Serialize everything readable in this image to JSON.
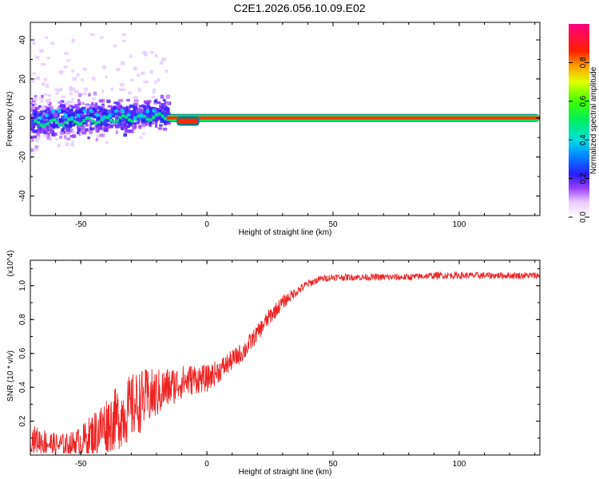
{
  "title": "C2E1.2026.056.10.09.E02",
  "chart_data": [
    {
      "type": "heatmap",
      "panel": "spectrogram",
      "xlabel": "Height of straight line (km)",
      "ylabel": "Frequency (Hz)",
      "xlim": [
        -70,
        132
      ],
      "ylim": [
        -50,
        49
      ],
      "xticks": [
        -50,
        0,
        50,
        100
      ],
      "yticks": [
        -40,
        -20,
        0,
        20,
        40
      ],
      "colorbar_label": "Normalized spectral amplitude",
      "colorbar_ticks": [
        0.0,
        0.2,
        0.4,
        0.6,
        0.8
      ],
      "colorbar_range": [
        0,
        1
      ],
      "dominant_line": {
        "x_start": -16,
        "x_end": 132,
        "frequency_hz": 0,
        "amplitude": 0.9
      },
      "notch": {
        "x_start": -12,
        "x_end": -3,
        "frequency_hz": -1.5
      },
      "noisy_region": {
        "x_start": -70,
        "x_end": -15,
        "frequency_spread_hz": [
          -10,
          45
        ]
      }
    },
    {
      "type": "line",
      "panel": "snr",
      "xlabel": "Height of straight line (km)",
      "ylabel": "SNR (10 * v/v)",
      "yscale_label": "(x10^4)",
      "xlim": [
        -70,
        132
      ],
      "ylim": [
        0,
        1.15
      ],
      "xticks": [
        -50,
        0,
        50,
        100
      ],
      "yticks": [
        0.2,
        0.4,
        0.6,
        0.8,
        1.0
      ],
      "color": "#ee2222",
      "series": [
        {
          "name": "SNR",
          "x": [
            -70,
            -65,
            -60,
            -55,
            -50,
            -45,
            -40,
            -35,
            -30,
            -25,
            -20,
            -15,
            -10,
            -5,
            0,
            5,
            10,
            15,
            20,
            25,
            30,
            35,
            40,
            45,
            50,
            60,
            70,
            80,
            90,
            100,
            110,
            120,
            132
          ],
          "mean": [
            0.1,
            0.08,
            0.06,
            0.06,
            0.08,
            0.12,
            0.18,
            0.22,
            0.28,
            0.33,
            0.36,
            0.4,
            0.43,
            0.45,
            0.45,
            0.5,
            0.56,
            0.62,
            0.72,
            0.82,
            0.9,
            0.96,
            1.01,
            1.04,
            1.05,
            1.05,
            1.05,
            1.05,
            1.06,
            1.06,
            1.06,
            1.06,
            1.06
          ],
          "noise": [
            0.08,
            0.08,
            0.07,
            0.07,
            0.09,
            0.14,
            0.17,
            0.19,
            0.2,
            0.18,
            0.15,
            0.12,
            0.1,
            0.09,
            0.08,
            0.07,
            0.06,
            0.06,
            0.05,
            0.05,
            0.04,
            0.03,
            0.025,
            0.02,
            0.02,
            0.02,
            0.02,
            0.02,
            0.02,
            0.02,
            0.02,
            0.02,
            0.02
          ]
        }
      ]
    }
  ]
}
